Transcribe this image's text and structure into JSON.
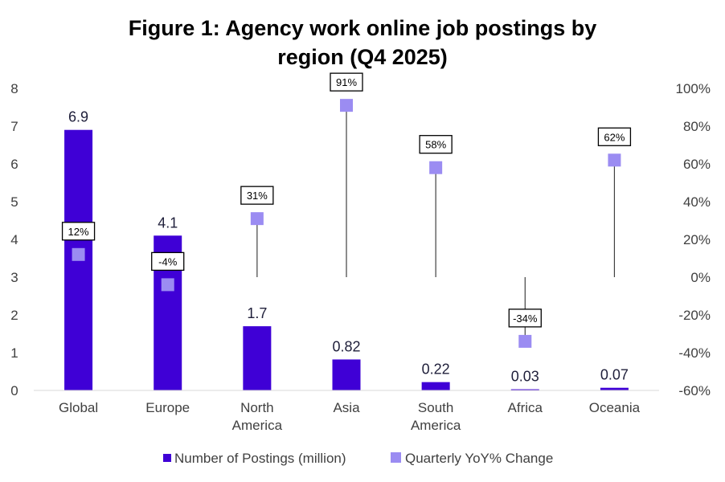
{
  "chart_data": {
    "type": "bar",
    "title_line1": "Figure 1: Agency work online job postings by",
    "title_line2": "region (Q4 2025)",
    "categories": [
      [
        "Global"
      ],
      [
        "Europe"
      ],
      [
        "North",
        "America"
      ],
      [
        "Asia"
      ],
      [
        "South",
        "America"
      ],
      [
        "Africa"
      ],
      [
        "Oceania"
      ]
    ],
    "series": [
      {
        "name": "Number of Postings (million)",
        "type": "bar",
        "axis": "left",
        "color": "#3f00d6",
        "values": [
          6.9,
          4.1,
          1.7,
          0.82,
          0.22,
          0.03,
          0.07
        ],
        "labels": [
          "6.9",
          "4.1",
          "1.7",
          "0.82",
          "0.22",
          "0.03",
          "0.07"
        ]
      },
      {
        "name": "Quarterly YoY% Change",
        "type": "scatter",
        "axis": "right",
        "color": "#9b8cf2",
        "values": [
          12,
          -4,
          31,
          91,
          58,
          -34,
          62
        ],
        "labels": [
          "12%",
          "-4%",
          "31%",
          "91%",
          "58%",
          "-34%",
          "62%"
        ]
      }
    ],
    "y_left": {
      "min": 0,
      "max": 8,
      "ticks": [
        "0",
        "1",
        "2",
        "3",
        "4",
        "5",
        "6",
        "7",
        "8"
      ]
    },
    "y_right": {
      "min": -60,
      "max": 100,
      "ticks": [
        "-60%",
        "-40%",
        "-20%",
        "0%",
        "20%",
        "40%",
        "60%",
        "80%",
        "100%"
      ]
    },
    "grid": false,
    "legend_position": "bottom"
  }
}
